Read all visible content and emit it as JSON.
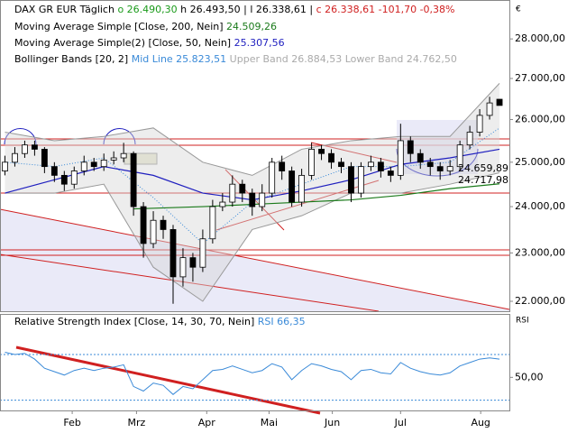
{
  "chart_data": {
    "type": "candlestick",
    "title": "DAX GR EUR",
    "period": "Täglich",
    "header": {
      "open": "o 26.490,30",
      "high": "h 26.493,50",
      "low": "l 26.338,61",
      "close": "c 26.338,61",
      "change": "-101,70",
      "change_pct": "-0,38%"
    },
    "currency": "€",
    "yscale": "log",
    "ylim": [
      21800,
      28900
    ],
    "yticks": [
      {
        "value": 22000,
        "label": "22.000,00"
      },
      {
        "value": 23000,
        "label": "23.000,00"
      },
      {
        "value": 24000,
        "label": "24.000,00"
      },
      {
        "value": 25000,
        "label": "25.000,00"
      },
      {
        "value": 26000,
        "label": "26.000,00"
      },
      {
        "value": 27000,
        "label": "27.000,00"
      },
      {
        "value": 28000,
        "label": "28.000,00"
      }
    ],
    "xlim": [
      -0.5,
      51
    ],
    "xticks": [
      {
        "value": 6.8,
        "label": "Feb"
      },
      {
        "value": 13.3,
        "label": "Mrz"
      },
      {
        "value": 20.4,
        "label": "Apr"
      },
      {
        "value": 26.7,
        "label": "Mai"
      },
      {
        "value": 33.1,
        "label": "Jun"
      },
      {
        "value": 40.0,
        "label": "Jul"
      },
      {
        "value": 48.1,
        "label": "Aug"
      }
    ],
    "candles": {
      "open": [
        24800,
        25000,
        25200,
        25400,
        25300,
        24900,
        24700,
        24500,
        24800,
        25000,
        24900,
        25050,
        25100,
        25200,
        24000,
        23200,
        23700,
        23500,
        22500,
        22900,
        22700,
        23300,
        24000,
        24100,
        24500,
        24300,
        24000,
        24300,
        25000,
        24800,
        24100,
        24700,
        25300,
        25200,
        25000,
        24900,
        24300,
        24900,
        25000,
        24800,
        24700,
        25500,
        25200,
        25000,
        24900,
        24800,
        24900,
        25400,
        25700,
        26100,
        26490
      ],
      "high": [
        25150,
        25350,
        25500,
        25500,
        25350,
        25000,
        24800,
        24900,
        25150,
        25100,
        25200,
        25250,
        25450,
        25250,
        24100,
        23900,
        23800,
        23600,
        23100,
        23000,
        23500,
        24150,
        24300,
        24700,
        24600,
        24400,
        24500,
        25100,
        25150,
        24900,
        24850,
        25450,
        25400,
        25300,
        25100,
        25000,
        25000,
        25150,
        25100,
        24900,
        25900,
        25600,
        25300,
        25100,
        25000,
        25050,
        25500,
        25850,
        26250,
        26550,
        26494
      ],
      "low": [
        24700,
        24900,
        25100,
        25150,
        24750,
        24550,
        24350,
        24400,
        24700,
        24800,
        24800,
        24950,
        25000,
        23800,
        22900,
        23100,
        23300,
        21950,
        22300,
        22400,
        22600,
        23200,
        23900,
        24000,
        24100,
        23800,
        23900,
        24200,
        24600,
        24000,
        24000,
        24600,
        25050,
        24850,
        24750,
        24100,
        24200,
        24800,
        24650,
        24550,
        24600,
        25000,
        24850,
        24700,
        24600,
        24700,
        24800,
        25300,
        25600,
        26000,
        26339
      ],
      "close": [
        25000,
        25200,
        25400,
        25300,
        24900,
        24700,
        24500,
        24800,
        25000,
        24900,
        25050,
        25100,
        25200,
        24000,
        23200,
        23700,
        23500,
        22500,
        22900,
        22700,
        23300,
        24000,
        24100,
        24500,
        24300,
        24000,
        24300,
        25000,
        24800,
        24100,
        24700,
        25300,
        25200,
        25000,
        24900,
        24300,
        24900,
        25000,
        24800,
        24700,
        25500,
        25200,
        25000,
        24900,
        24800,
        24900,
        25400,
        25700,
        26100,
        26400,
        26339
      ]
    },
    "series": [
      {
        "name": "Moving Average Simple [Close, 200, Nein]",
        "last": "24.509,26",
        "color": "#1a7a1a",
        "x": [
          13,
          20,
          25,
          30,
          35,
          40,
          45,
          50
        ],
        "values": [
          23950,
          24000,
          24050,
          24100,
          24150,
          24250,
          24400,
          24509
        ]
      },
      {
        "name": "Moving Average Simple(2) [Close, 50, Nein]",
        "last": "25.307,56",
        "color": "#1f1fbf",
        "x": [
          0,
          5,
          10,
          15,
          20,
          25,
          30,
          35,
          40,
          45,
          50
        ],
        "values": [
          24300,
          24600,
          24900,
          24700,
          24300,
          24150,
          24350,
          24600,
          24950,
          25100,
          25300
        ]
      }
    ],
    "bollinger": {
      "name": "Bollinger Bands [20, 2]",
      "mid_label": "Mid Line 25.823,51",
      "upper_label": "Upper Band 26.884,53",
      "lower_label": "Lower Band 24.762,50",
      "x": [
        0,
        5,
        10,
        15,
        20,
        25,
        30,
        35,
        40,
        45,
        50
      ],
      "mid": [
        25000,
        24900,
        25100,
        24200,
        23200,
        24100,
        24500,
        24900,
        24900,
        25000,
        25800
      ],
      "upper": [
        25700,
        25500,
        25600,
        25800,
        25000,
        24700,
        25300,
        25500,
        25600,
        25600,
        26880
      ],
      "lower": [
        24300,
        24300,
        24500,
        22700,
        22000,
        23500,
        23800,
        24300,
        24300,
        24500,
        24760
      ]
    },
    "annotations": [
      "24.659,89",
      "24.717,98"
    ],
    "rsi": {
      "name": "Relative Strength Index [Close, 14, 30, 70, Nein]",
      "last": "RSI 66,35",
      "axis_label": "RSI",
      "ylim": [
        21,
        104
      ],
      "yticks": [
        {
          "value": 50,
          "label": "50,00"
        }
      ],
      "levels": [
        30,
        70
      ],
      "color": "#3a8ad8",
      "values": [
        72,
        70,
        71,
        66,
        58,
        55,
        52,
        56,
        58,
        56,
        58,
        59,
        61,
        42,
        38,
        45,
        43,
        35,
        42,
        40,
        48,
        56,
        57,
        60,
        57,
        54,
        56,
        62,
        59,
        48,
        56,
        62,
        60,
        57,
        55,
        48,
        56,
        57,
        54,
        53,
        63,
        58,
        55,
        53,
        52,
        54,
        60,
        63,
        66,
        67,
        66
      ]
    }
  }
}
